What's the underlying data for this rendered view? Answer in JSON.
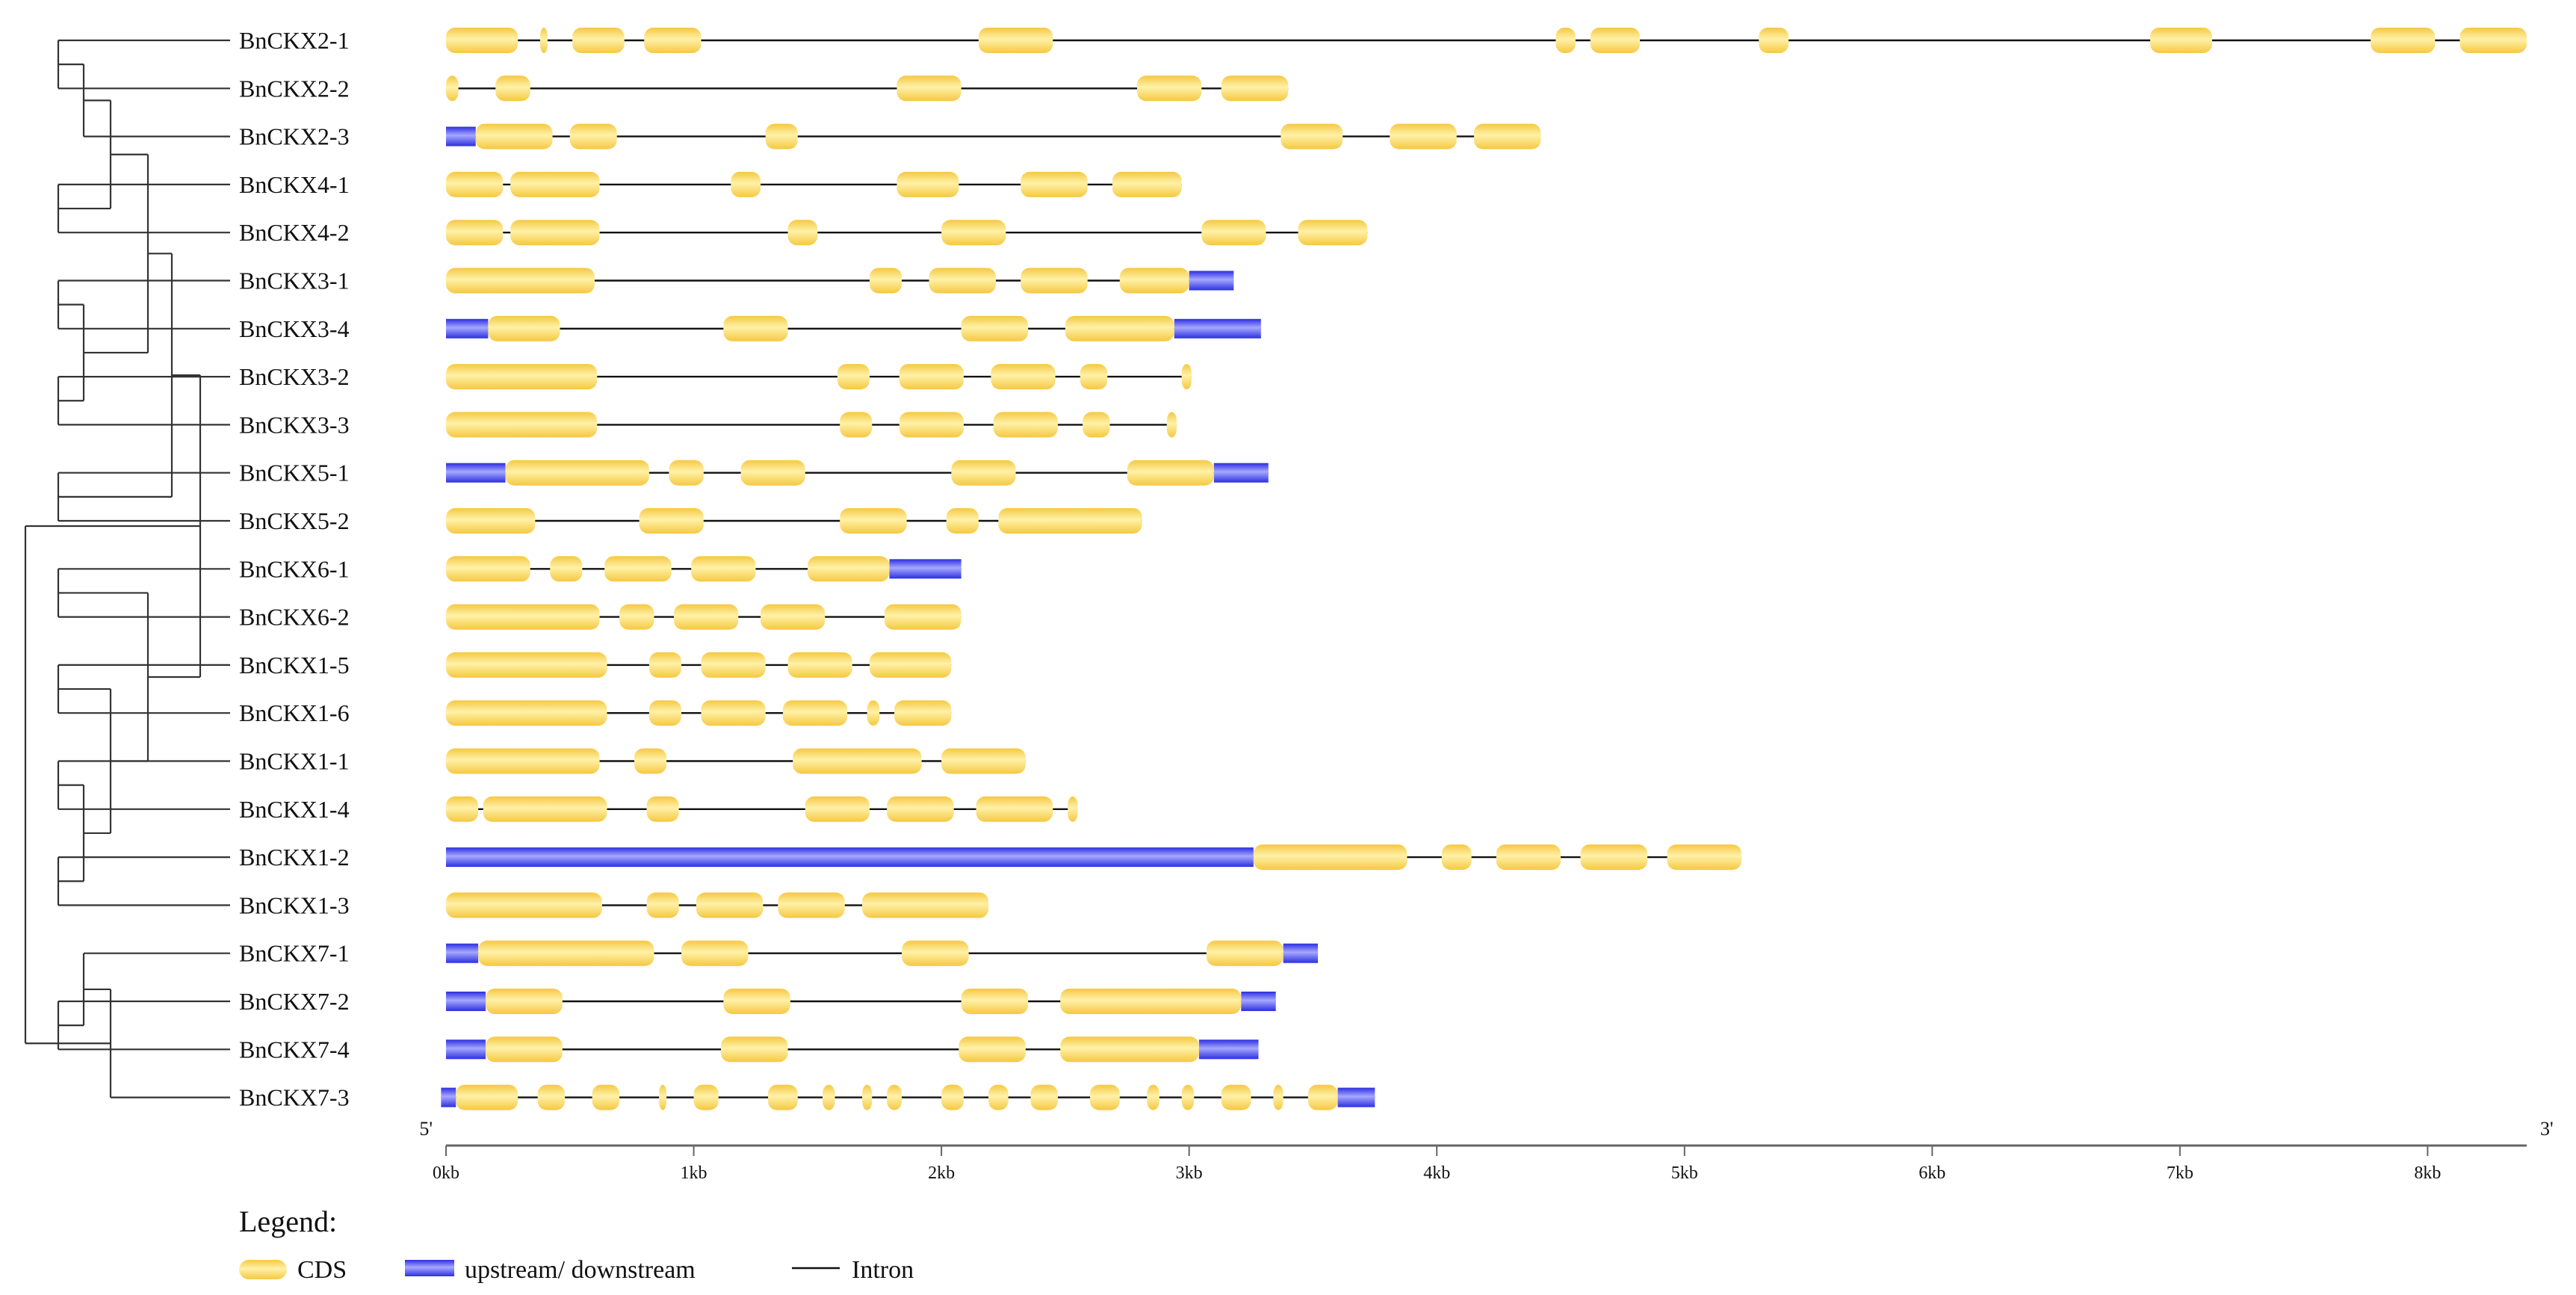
{
  "chart_data": {
    "type": "gene-structure",
    "title": "",
    "colors": {
      "cds": "#f5c842",
      "cds_light": "#fff1a8",
      "utr": "#2d2fe0",
      "utr_light": "#a6a8ff",
      "intron": "#111111",
      "tree": "#333333",
      "axis": "#666666"
    },
    "axis": {
      "min_bp": 0,
      "max_bp": 8400,
      "ticks": [
        0,
        1000,
        2000,
        3000,
        4000,
        5000,
        6000,
        7000,
        8000
      ],
      "tick_labels": [
        "0kb",
        "1kb",
        "2kb",
        "3kb",
        "4kb",
        "5kb",
        "6kb",
        "7kb",
        "8kb"
      ],
      "five_prime_label": "5'",
      "three_prime_label": "3'"
    },
    "legend": {
      "title": "Legend:",
      "cds_label": "CDS",
      "utr_label": "upstream/ downstream",
      "intron_label": "Intron"
    },
    "tree": {
      "children": [
        {
          "children": [
            {
              "children": [
                {
                  "children": [
                    {
                      "children": [
                        {
                          "children": [
                            {
                              "leaf": 0
                            },
                            {
                              "leaf": 1
                            }
                          ]
                        },
                        {
                          "leaf": 2
                        }
                      ]
                    },
                    {
                      "children": [
                        {
                          "leaf": 3
                        },
                        {
                          "leaf": 4
                        }
                      ]
                    }
                  ]
                },
                {
                  "children": [
                    {
                      "children": [
                        {
                          "leaf": 5
                        },
                        {
                          "leaf": 6
                        }
                      ]
                    },
                    {
                      "children": [
                        {
                          "leaf": 7
                        },
                        {
                          "leaf": 8
                        }
                      ]
                    }
                  ]
                }
              ]
            },
            {
              "children": [
                {
                  "leaf": 9
                },
                {
                  "leaf": 10
                }
              ]
            }
          ]
        },
        {
          "children": [
            {
              "children": [
                {
                  "leaf": 11
                },
                {
                  "leaf": 12
                }
              ]
            },
            {
              "children": [
                {
                  "children": [
                    {
                      "leaf": 13
                    },
                    {
                      "leaf": 14
                    }
                  ]
                },
                {
                  "children": [
                    {
                      "children": [
                        {
                          "leaf": 15
                        },
                        {
                          "leaf": 16
                        }
                      ]
                    },
                    {
                      "children": [
                        {
                          "leaf": 17
                        },
                        {
                          "leaf": 18
                        }
                      ]
                    }
                  ]
                }
              ]
            }
          ]
        }
      ],
      "outgroup": {
        "children": [
          {
            "children": [
              {
                "leaf": 19
              },
              {
                "children": [
                  {
                    "leaf": 20
                  },
                  {
                    "leaf": 21
                  }
                ]
              }
            ]
          },
          {
            "leaf": 22
          }
        ]
      }
    },
    "genes": [
      {
        "name": "BnCKX2-1",
        "length": 8400,
        "utr": [],
        "cds": [
          [
            0,
            290
          ],
          [
            380,
            410
          ],
          [
            510,
            720
          ],
          [
            800,
            1030
          ],
          [
            2150,
            2450
          ],
          [
            4480,
            4560
          ],
          [
            4620,
            4820
          ],
          [
            5300,
            5420
          ],
          [
            6880,
            7130
          ],
          [
            7770,
            8030
          ],
          [
            8130,
            8400
          ]
        ]
      },
      {
        "name": "BnCKX2-2",
        "length": 3400,
        "utr": [],
        "cds": [
          [
            0,
            50
          ],
          [
            200,
            340
          ],
          [
            1820,
            2080
          ],
          [
            2790,
            3050
          ],
          [
            3130,
            3400
          ]
        ]
      },
      {
        "name": "BnCKX2-3",
        "length": 4420,
        "utr": [
          [
            0,
            120
          ]
        ],
        "cds": [
          [
            120,
            430
          ],
          [
            500,
            690
          ],
          [
            1290,
            1420
          ],
          [
            3370,
            3620
          ],
          [
            3810,
            4080
          ],
          [
            4150,
            4420
          ]
        ]
      },
      {
        "name": "BnCKX4-1",
        "length": 2970,
        "utr": [],
        "cds": [
          [
            0,
            230
          ],
          [
            260,
            620
          ],
          [
            1150,
            1270
          ],
          [
            1820,
            2070
          ],
          [
            2320,
            2590
          ],
          [
            2690,
            2970
          ]
        ]
      },
      {
        "name": "BnCKX4-2",
        "length": 3720,
        "utr": [],
        "cds": [
          [
            0,
            230
          ],
          [
            260,
            620
          ],
          [
            1380,
            1500
          ],
          [
            2000,
            2260
          ],
          [
            3050,
            3310
          ],
          [
            3440,
            3720
          ]
        ]
      },
      {
        "name": "BnCKX3-1",
        "length": 3180,
        "utr": [
          [
            3000,
            3180
          ]
        ],
        "cds": [
          [
            0,
            600
          ],
          [
            1710,
            1840
          ],
          [
            1950,
            2220
          ],
          [
            2320,
            2590
          ],
          [
            2720,
            3000
          ]
        ]
      },
      {
        "name": "BnCKX3-4",
        "length": 3290,
        "utr": [
          [
            0,
            170
          ],
          [
            2940,
            3290
          ]
        ],
        "cds": [
          [
            170,
            460
          ],
          [
            1120,
            1380
          ],
          [
            2080,
            2350
          ],
          [
            2500,
            2940
          ]
        ]
      },
      {
        "name": "BnCKX3-2",
        "length": 3010,
        "utr": [],
        "cds": [
          [
            0,
            610
          ],
          [
            1580,
            1710
          ],
          [
            1830,
            2090
          ],
          [
            2200,
            2460
          ],
          [
            2560,
            2670
          ],
          [
            2970,
            3010
          ]
        ]
      },
      {
        "name": "BnCKX3-3",
        "length": 2950,
        "utr": [],
        "cds": [
          [
            0,
            610
          ],
          [
            1590,
            1720
          ],
          [
            1830,
            2090
          ],
          [
            2210,
            2470
          ],
          [
            2570,
            2680
          ],
          [
            2910,
            2950
          ]
        ]
      },
      {
        "name": "BnCKX5-1",
        "length": 3320,
        "utr": [
          [
            0,
            240
          ],
          [
            3100,
            3320
          ]
        ],
        "cds": [
          [
            240,
            820
          ],
          [
            900,
            1040
          ],
          [
            1190,
            1450
          ],
          [
            2040,
            2300
          ],
          [
            2750,
            3100
          ]
        ]
      },
      {
        "name": "BnCKX5-2",
        "length": 2810,
        "utr": [],
        "cds": [
          [
            0,
            360
          ],
          [
            780,
            1040
          ],
          [
            1590,
            1860
          ],
          [
            2020,
            2150
          ],
          [
            2230,
            2810
          ]
        ]
      },
      {
        "name": "BnCKX6-1",
        "length": 2080,
        "utr": [
          [
            1790,
            2080
          ]
        ],
        "cds": [
          [
            0,
            340
          ],
          [
            420,
            550
          ],
          [
            640,
            910
          ],
          [
            990,
            1250
          ],
          [
            1460,
            1790
          ]
        ]
      },
      {
        "name": "BnCKX6-2",
        "length": 2080,
        "utr": [],
        "cds": [
          [
            0,
            620
          ],
          [
            700,
            840
          ],
          [
            920,
            1180
          ],
          [
            1270,
            1530
          ],
          [
            1770,
            2080
          ]
        ]
      },
      {
        "name": "BnCKX1-5",
        "length": 2040,
        "utr": [],
        "cds": [
          [
            0,
            650
          ],
          [
            820,
            950
          ],
          [
            1030,
            1290
          ],
          [
            1380,
            1640
          ],
          [
            1710,
            2040
          ]
        ]
      },
      {
        "name": "BnCKX1-6",
        "length": 2040,
        "utr": [],
        "cds": [
          [
            0,
            650
          ],
          [
            820,
            950
          ],
          [
            1030,
            1290
          ],
          [
            1360,
            1620
          ],
          [
            1700,
            1750
          ],
          [
            1810,
            2040
          ]
        ]
      },
      {
        "name": "BnCKX1-1",
        "length": 2340,
        "utr": [],
        "cds": [
          [
            0,
            620
          ],
          [
            760,
            890
          ],
          [
            1400,
            1920
          ],
          [
            2000,
            2340
          ]
        ]
      },
      {
        "name": "BnCKX1-4",
        "length": 2550,
        "utr": [],
        "cds": [
          [
            0,
            130
          ],
          [
            150,
            650
          ],
          [
            810,
            940
          ],
          [
            1450,
            1710
          ],
          [
            1780,
            2050
          ],
          [
            2140,
            2450
          ],
          [
            2510,
            2550
          ]
        ]
      },
      {
        "name": "BnCKX1-2",
        "length": 5230,
        "utr": [
          [
            0,
            3260
          ]
        ],
        "cds": [
          [
            3260,
            3880
          ],
          [
            4020,
            4140
          ],
          [
            4240,
            4500
          ],
          [
            4580,
            4850
          ],
          [
            4930,
            5230
          ]
        ]
      },
      {
        "name": "BnCKX1-3",
        "length": 2190,
        "utr": [],
        "cds": [
          [
            0,
            630
          ],
          [
            810,
            940
          ],
          [
            1010,
            1280
          ],
          [
            1340,
            1610
          ],
          [
            1680,
            2190
          ]
        ]
      },
      {
        "name": "BnCKX7-1",
        "length": 3520,
        "utr": [
          [
            0,
            130
          ],
          [
            3380,
            3520
          ]
        ],
        "cds": [
          [
            130,
            840
          ],
          [
            950,
            1220
          ],
          [
            1840,
            2110
          ],
          [
            3070,
            3380
          ]
        ]
      },
      {
        "name": "BnCKX7-2",
        "length": 3350,
        "utr": [
          [
            0,
            160
          ],
          [
            3210,
            3350
          ]
        ],
        "cds": [
          [
            160,
            470
          ],
          [
            1120,
            1390
          ],
          [
            2080,
            2350
          ],
          [
            2480,
            3210
          ]
        ]
      },
      {
        "name": "BnCKX7-4",
        "length": 3280,
        "utr": [
          [
            0,
            160
          ],
          [
            3040,
            3280
          ]
        ],
        "cds": [
          [
            160,
            470
          ],
          [
            1110,
            1380
          ],
          [
            2070,
            2340
          ],
          [
            2480,
            3040
          ]
        ]
      },
      {
        "name": "BnCKX7-3",
        "length": 3750,
        "utr": [
          [
            -20,
            40
          ],
          [
            3600,
            3750
          ]
        ],
        "cds": [
          [
            40,
            290
          ],
          [
            370,
            480
          ],
          [
            590,
            700
          ],
          [
            860,
            890
          ],
          [
            1000,
            1100
          ],
          [
            1300,
            1420
          ],
          [
            1520,
            1570
          ],
          [
            1680,
            1720
          ],
          [
            1780,
            1840
          ],
          [
            2000,
            2090
          ],
          [
            2190,
            2270
          ],
          [
            2360,
            2470
          ],
          [
            2600,
            2720
          ],
          [
            2830,
            2880
          ],
          [
            2970,
            3020
          ],
          [
            3130,
            3250
          ],
          [
            3340,
            3380
          ],
          [
            3480,
            3600
          ]
        ]
      }
    ]
  }
}
